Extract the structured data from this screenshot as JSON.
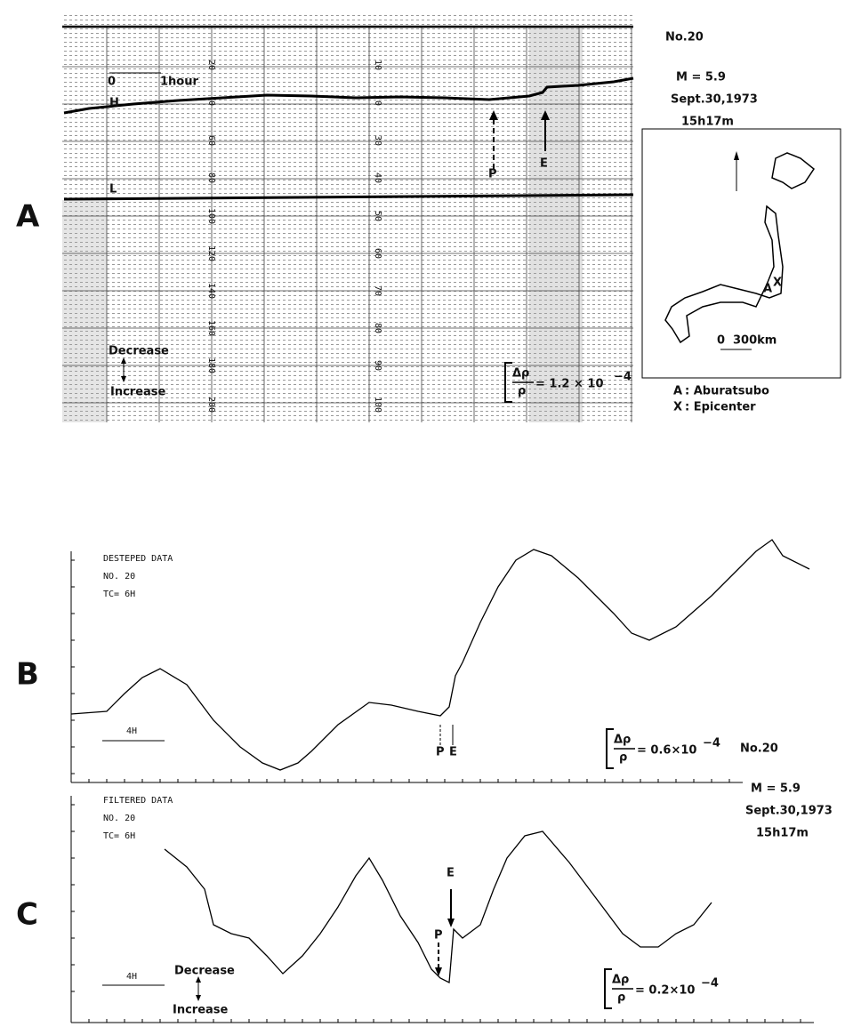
{
  "panel_labels": [
    "A",
    "B",
    "C"
  ],
  "panel_a": {
    "event": {
      "number": "No.20",
      "magnitude": "M = 5.9",
      "date": "Sept.30,1973",
      "time": "15h17m"
    },
    "time_scale": {
      "start": "0",
      "end": "1hour"
    },
    "trace_labels": [
      "H",
      "L"
    ],
    "arrows": [
      "P",
      "E"
    ],
    "direction": [
      "Decrease",
      "Increase"
    ],
    "scale": {
      "delta": "Δρ",
      "rho": "ρ",
      "value": "= 1.2 × 10",
      "exponent": "−4"
    },
    "paper_scale_1": [
      "20",
      "0",
      "60",
      "80",
      "100",
      "120",
      "140",
      "160",
      "180",
      "200"
    ],
    "paper_scale_2": [
      "10",
      "0",
      "30",
      "40",
      "50",
      "60",
      "70",
      "80",
      "90",
      "100"
    ],
    "map": {
      "scale": [
        "0",
        "300km"
      ],
      "markers": [
        "A",
        "X"
      ],
      "legend": [
        {
          "key": "A",
          "text": ": Aburatsubo"
        },
        {
          "key": "X",
          "text": ": Epicenter"
        }
      ]
    }
  },
  "panel_b": {
    "header": [
      "DESTEPED DATA",
      "NO.  20",
      "TC=   6H"
    ],
    "time_scale": "4H",
    "arrows": [
      "P",
      "E"
    ],
    "scale": {
      "delta": "Δρ",
      "rho": "ρ",
      "value": "= 0.6×10",
      "exponent": "−4"
    },
    "event": {
      "number": "No.20",
      "magnitude": "M = 5.9",
      "date": "Sept.30,1973",
      "time": "15h17m"
    }
  },
  "panel_c": {
    "header": [
      "FILTERED DATA",
      "NO.  20",
      "TC=   6H"
    ],
    "time_scale": "4H",
    "arrows": [
      "E",
      "P"
    ],
    "direction": [
      "Decrease",
      "Increase"
    ],
    "scale": {
      "delta": "Δρ",
      "rho": "ρ",
      "value": "= 0.2×10",
      "exponent": "−4"
    }
  }
}
